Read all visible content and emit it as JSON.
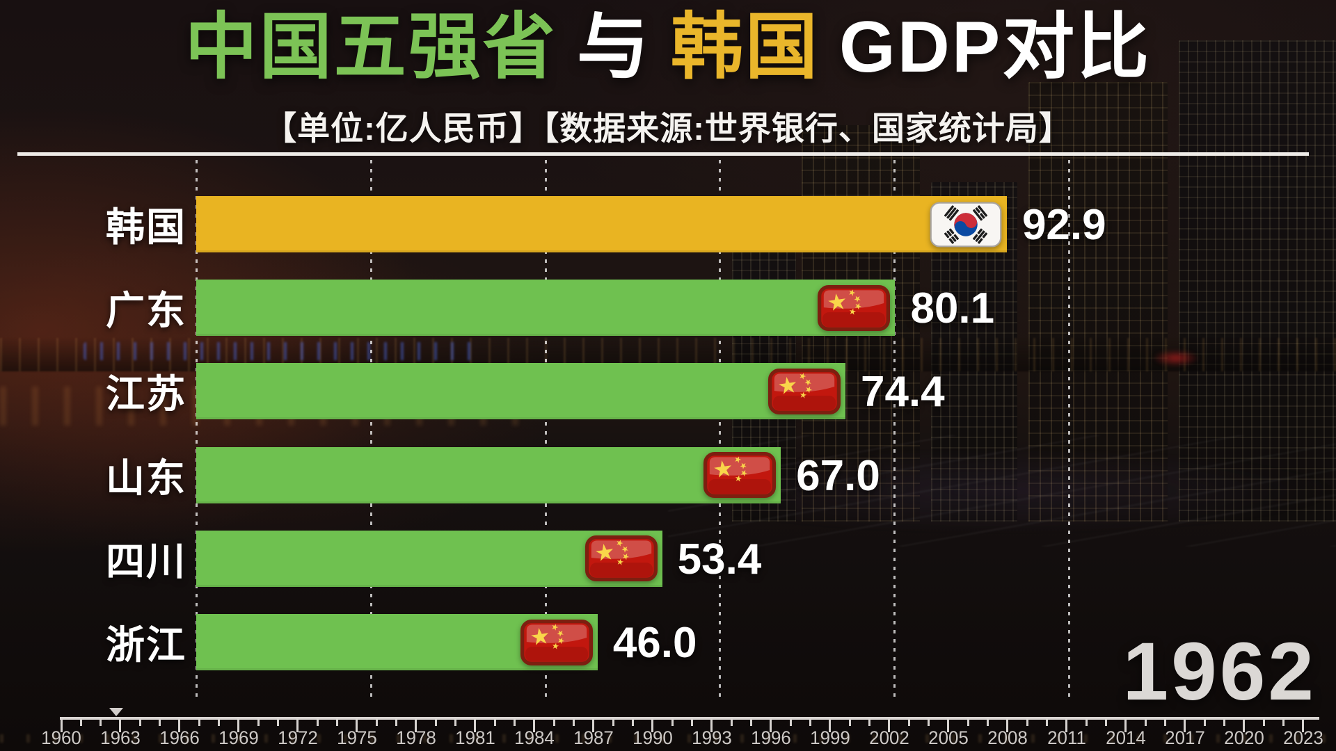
{
  "header": {
    "title_parts": [
      {
        "text": "中国五强省",
        "color": "#7cc356"
      },
      {
        "text": "与",
        "color": "#ffffff"
      },
      {
        "text": "韩国",
        "color": "#eab62b"
      },
      {
        "text": "GDP对比",
        "color": "#ffffff"
      }
    ],
    "subtitle": "【单位:亿人民币】【数据来源:世界银行、国家统计局】"
  },
  "chart_data": {
    "type": "bar",
    "orientation": "horizontal",
    "title": "中国五强省 与 韩国 GDP对比",
    "unit": "亿人民币",
    "source": "世界银行、国家统计局",
    "year": "1962",
    "categories": [
      "韩国",
      "广东",
      "江苏",
      "山东",
      "四川",
      "浙江"
    ],
    "values": [
      92.9,
      80.1,
      74.4,
      67.0,
      53.4,
      46.0
    ],
    "value_labels": [
      "92.9",
      "80.1",
      "74.4",
      "67.0",
      "53.4",
      "46.0"
    ],
    "bar_colors": [
      "#e9b422",
      "#6fc150",
      "#6fc150",
      "#6fc150",
      "#6fc150",
      "#6fc150"
    ],
    "flag_icons": [
      "korea-flag",
      "china-flag",
      "china-flag",
      "china-flag",
      "china-flag",
      "china-flag"
    ],
    "xlim": [
      0,
      100
    ],
    "gridline_step": 20,
    "grid": "dashed-vertical",
    "legend": "none"
  },
  "timeline": {
    "start_year": 1960,
    "end_year": 2023,
    "label_step": 3,
    "labels": [
      "1960",
      "1963",
      "1966",
      "1969",
      "1972",
      "1975",
      "1978",
      "1981",
      "1984",
      "1987",
      "1990",
      "1993",
      "1996",
      "1999",
      "2002",
      "2005",
      "2008",
      "2011",
      "2014",
      "2017",
      "2020",
      "2023"
    ],
    "marker_year": 1962.8,
    "current_year_display": "1962"
  },
  "colors": {
    "korea_bar": "#e9b422",
    "china_bar": "#6fc150",
    "title_green": "#7cc356",
    "title_gold": "#eab62b",
    "text_white": "#ffffff",
    "axis_text": "#ccc8c5",
    "year_text": "#dbd8d5"
  }
}
